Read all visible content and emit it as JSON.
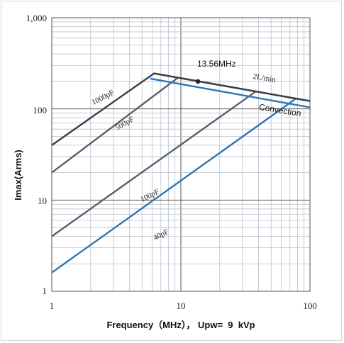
{
  "chart_data": {
    "type": "line",
    "x_scale": "log",
    "y_scale": "log",
    "xlim": [
      1,
      100
    ],
    "ylim": [
      1,
      1000
    ],
    "x_ticks": [
      "1",
      "10",
      "100"
    ],
    "y_ticks": [
      "1",
      "10",
      "100",
      "1,000"
    ],
    "xlabel": "Frequency（MHz）， Upw=  9  kVp",
    "ylabel": "Imax(Arms)",
    "grid": true,
    "series": [
      {
        "name": "1000pF",
        "color": "#3a3f4a",
        "points": [
          [
            1,
            40
          ],
          [
            6.2,
            245
          ],
          [
            100,
            122
          ]
        ]
      },
      {
        "name": "500pF",
        "color": "#5a5f68",
        "points": [
          [
            1,
            20
          ],
          [
            9.5,
            220
          ]
        ]
      },
      {
        "name": "100pF",
        "color": "#5a5f68",
        "points": [
          [
            1,
            4
          ],
          [
            38,
            155
          ]
        ]
      },
      {
        "name": "40pF",
        "color": "#2e75b6",
        "points": [
          [
            1,
            1.6
          ],
          [
            78,
            130
          ]
        ]
      },
      {
        "name": "2L/min",
        "color": "#3a3f4a",
        "points": [
          [
            6.2,
            245
          ],
          [
            100,
            122
          ]
        ]
      },
      {
        "name": "Convection",
        "color": "#2e75b6",
        "points": [
          [
            5.8,
            215
          ],
          [
            100,
            104
          ]
        ]
      }
    ],
    "annotations": [
      {
        "text": "13.56MHz",
        "x": 13.56,
        "y": 200
      }
    ],
    "colors": {
      "grid": "#b9c0cc",
      "major_grid": "#555555",
      "axis": "#555555"
    }
  }
}
